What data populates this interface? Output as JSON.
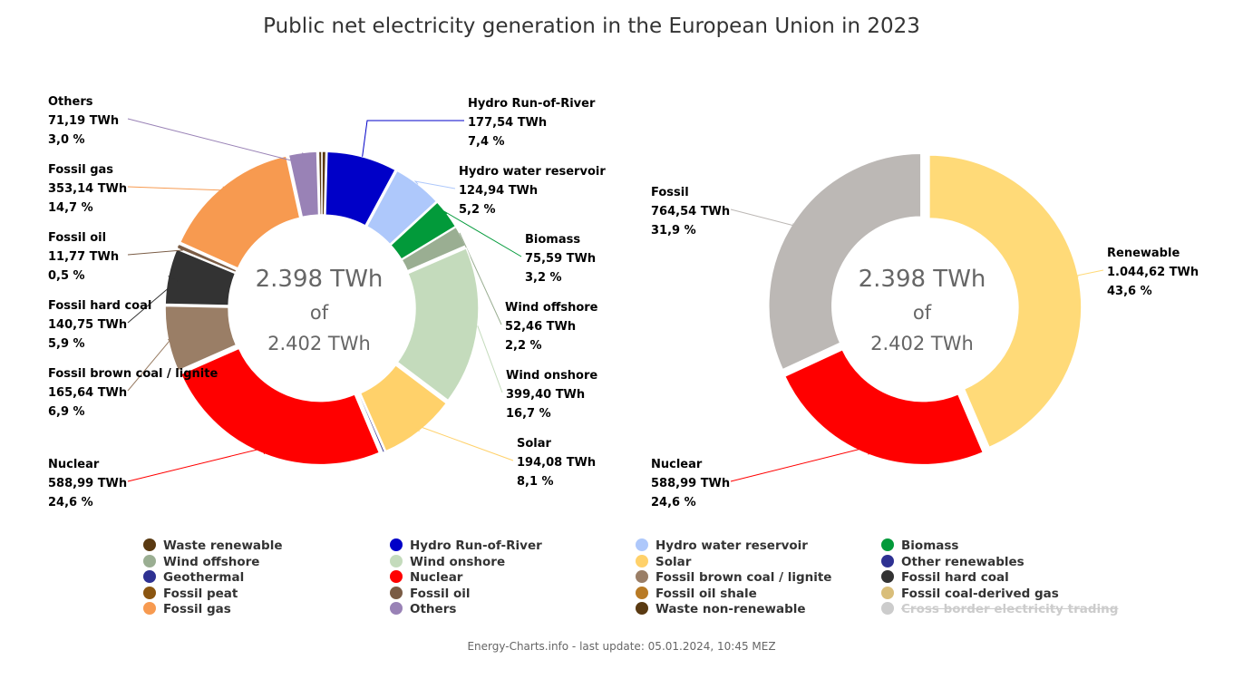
{
  "title": "Public net electricity generation in the European Union in 2023",
  "footer": "Energy-Charts.info - last update: 05.01.2024, 10:45 MEZ",
  "center": {
    "line1": "2.398 TWh",
    "line2": "of",
    "line3": "2.402 TWh"
  },
  "chart_data": [
    {
      "type": "pie",
      "variant": "donut",
      "total_shown_twh": "2.398 TWh",
      "total_all_twh": "2.402 TWh",
      "slices": [
        {
          "name": "Waste renewable",
          "value": 10.2,
          "color": "#5a3a12",
          "label": null
        },
        {
          "name": "Hydro Run-of-River",
          "value": 177.54,
          "color": "#0000c8",
          "label": [
            "Hydro Run-of-River",
            "177,54 TWh",
            "7,4 %"
          ]
        },
        {
          "name": "Hydro water reservoir",
          "value": 124.94,
          "color": "#aec8fb",
          "label": [
            "Hydro water reservoir",
            "124,94 TWh",
            "5,2 %"
          ]
        },
        {
          "name": "Biomass",
          "value": 75.59,
          "color": "#029a3a",
          "label": [
            "Biomass",
            "75,59 TWh",
            "3,2 %"
          ]
        },
        {
          "name": "Wind offshore",
          "value": 52.46,
          "color": "#9aae92",
          "label": [
            "Wind offshore",
            "52,46 TWh",
            "2,2 %"
          ]
        },
        {
          "name": "Wind onshore",
          "value": 399.4,
          "color": "#c4dbbc",
          "label": [
            "Wind onshore",
            "399,40 TWh",
            "16,7 %"
          ]
        },
        {
          "name": "Solar",
          "value": 194.08,
          "color": "#ffd16a",
          "label": [
            "Solar",
            "194,08 TWh",
            "8,1 %"
          ]
        },
        {
          "name": "Geothermal",
          "value": 5.6,
          "color": "#2e3192",
          "label": null
        },
        {
          "name": "Nuclear",
          "value": 588.99,
          "color": "#ff0000",
          "label": [
            "Nuclear",
            "588,99 TWh",
            "24,6 %"
          ]
        },
        {
          "name": "Fossil brown coal / lignite",
          "value": 165.64,
          "color": "#9a7e66",
          "label": [
            "Fossil brown coal / lignite",
            "165,64 TWh",
            "6,9 %"
          ]
        },
        {
          "name": "Fossil hard coal",
          "value": 140.75,
          "color": "#333333",
          "label": [
            "Fossil hard coal",
            "140,75 TWh",
            "5,9 %"
          ]
        },
        {
          "name": "Fossil oil",
          "value": 11.77,
          "color": "#7a5c45",
          "label": [
            "Fossil oil",
            "11,77 TWh",
            "0,5 %"
          ]
        },
        {
          "name": "Fossil gas",
          "value": 353.14,
          "color": "#f79a50",
          "label": [
            "Fossil gas",
            "353,14 TWh",
            "14,7 %"
          ]
        },
        {
          "name": "Others",
          "value": 71.19,
          "color": "#9982b6",
          "label": [
            "Others",
            "71,19 TWh",
            "3,0 %"
          ]
        },
        {
          "name": "Other renewables",
          "value": 3.0,
          "color": "#2e3192",
          "label": null
        },
        {
          "name": "Waste non-renewable",
          "value": 8.0,
          "color": "#5a3a12",
          "label": null
        }
      ]
    },
    {
      "type": "pie",
      "variant": "donut",
      "total_shown_twh": "2.398 TWh",
      "total_all_twh": "2.402 TWh",
      "slices": [
        {
          "name": "Renewable",
          "value": 1044.62,
          "color": "#ffda78",
          "label": [
            "Renewable",
            "1.044,62 TWh",
            "43,6 %"
          ]
        },
        {
          "name": "Nuclear",
          "value": 588.99,
          "color": "#ff0000",
          "label": [
            "Nuclear",
            "588,99 TWh",
            "24,6 %"
          ]
        },
        {
          "name": "Fossil",
          "value": 764.54,
          "color": "#bcb8b5",
          "label": [
            "Fossil",
            "764,54 TWh",
            "31,9 %"
          ]
        }
      ]
    }
  ],
  "legend": [
    {
      "label": "Waste renewable",
      "color": "#5a3a12",
      "hidden": false
    },
    {
      "label": "Hydro Run-of-River",
      "color": "#0000c8",
      "hidden": false
    },
    {
      "label": "Hydro water reservoir",
      "color": "#aec8fb",
      "hidden": false
    },
    {
      "label": "Biomass",
      "color": "#029a3a",
      "hidden": false
    },
    {
      "label": "Wind offshore",
      "color": "#9aae92",
      "hidden": false
    },
    {
      "label": "Wind onshore",
      "color": "#c4dbbc",
      "hidden": false
    },
    {
      "label": "Solar",
      "color": "#ffd16a",
      "hidden": false
    },
    {
      "label": "Other renewables",
      "color": "#2e3192",
      "hidden": false
    },
    {
      "label": "Geothermal",
      "color": "#2e3192",
      "hidden": false
    },
    {
      "label": "Nuclear",
      "color": "#ff0000",
      "hidden": false
    },
    {
      "label": "Fossil brown coal / lignite",
      "color": "#9a7e66",
      "hidden": false
    },
    {
      "label": "Fossil hard coal",
      "color": "#333333",
      "hidden": false
    },
    {
      "label": "Fossil peat",
      "color": "#8a5510",
      "hidden": false
    },
    {
      "label": "Fossil oil",
      "color": "#7a5c45",
      "hidden": false
    },
    {
      "label": "Fossil oil shale",
      "color": "#b87a25",
      "hidden": false
    },
    {
      "label": "Fossil coal-derived gas",
      "color": "#d9be7a",
      "hidden": false
    },
    {
      "label": "Fossil gas",
      "color": "#f79a50",
      "hidden": false
    },
    {
      "label": "Others",
      "color": "#9982b6",
      "hidden": false
    },
    {
      "label": "Waste non-renewable",
      "color": "#5a3a12",
      "hidden": false
    },
    {
      "label": "Cross border electricity trading",
      "color": "#cccccc",
      "hidden": true
    }
  ]
}
